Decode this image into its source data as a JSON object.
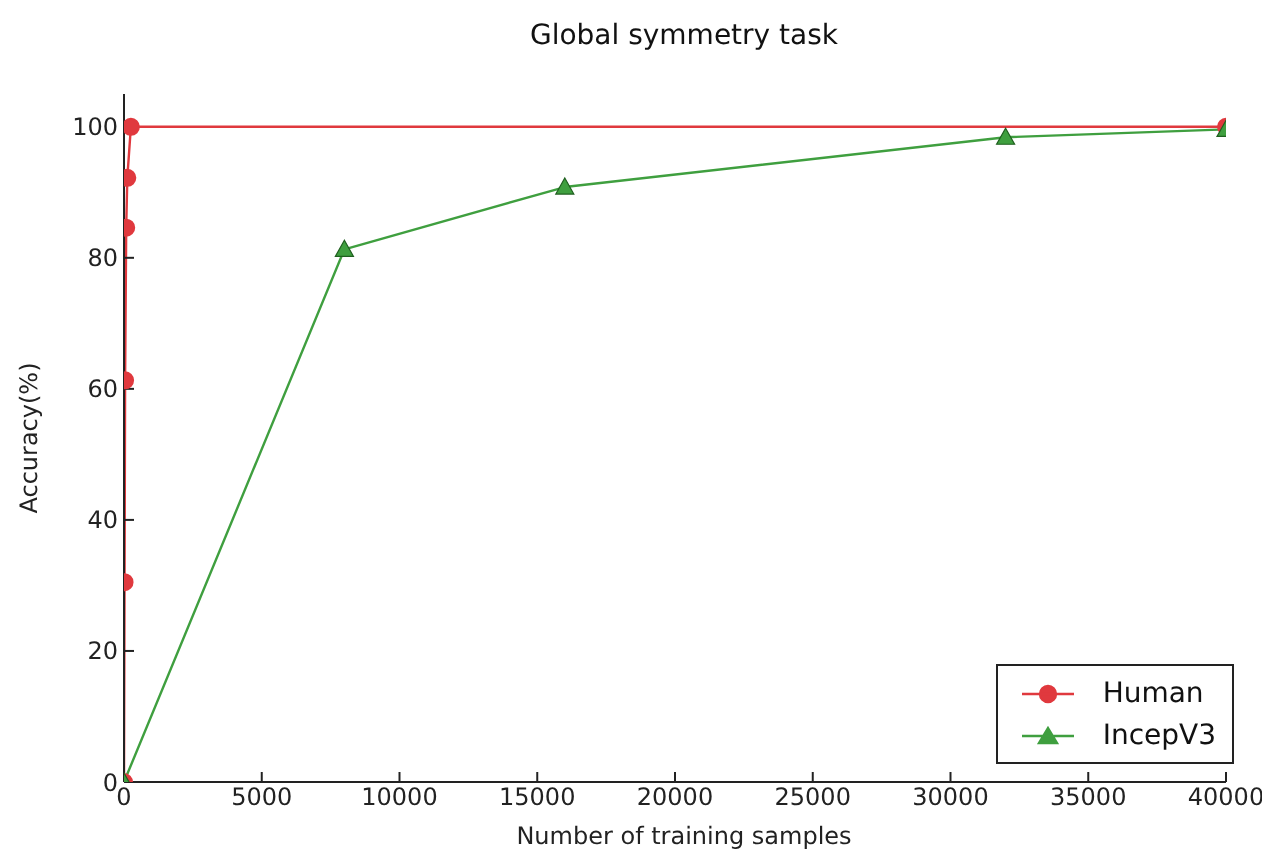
{
  "chart_data": {
    "type": "line",
    "title": "Global symmetry task",
    "xlabel": "Number of training samples",
    "ylabel": "Accuracy(%)",
    "xlim": [
      0,
      40000
    ],
    "xticks": [
      0,
      5000,
      10000,
      15000,
      20000,
      25000,
      30000,
      35000,
      40000
    ],
    "ylim": [
      0,
      105
    ],
    "yticks": [
      0,
      20,
      40,
      60,
      80,
      100
    ],
    "series": [
      {
        "name": "Human",
        "color": "#e0393e",
        "marker": "circle",
        "x": [
          0,
          20,
          40,
          80,
          120,
          250,
          40000
        ],
        "values": [
          0,
          30.5,
          61.3,
          84.6,
          92.2,
          100,
          100
        ]
      },
      {
        "name": "IncepV3",
        "color": "#3f9f3f",
        "marker": "triangle",
        "x": [
          0,
          8000,
          16000,
          32000,
          40000
        ],
        "values": [
          0,
          81.3,
          90.8,
          98.4,
          99.6
        ]
      }
    ],
    "legend": "bottom right"
  }
}
